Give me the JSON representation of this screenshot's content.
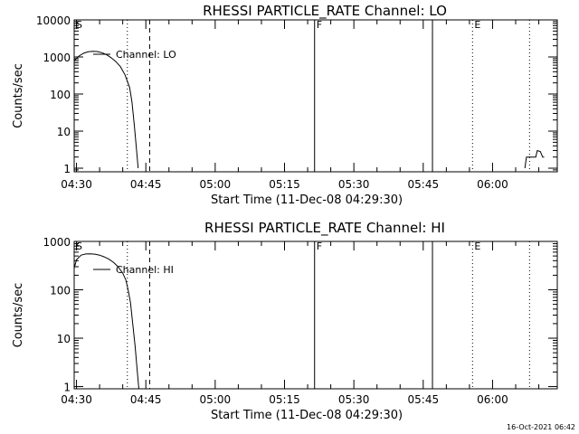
{
  "timestamp": "16-Oct-2021 06:42",
  "chart_data": [
    {
      "type": "line",
      "title": "RHESSI PARTICLE_RATE Channel: LO",
      "xlabel": "Start Time (11-Dec-08 04:29:30)",
      "ylabel": "Counts/sec",
      "yscale": "log",
      "xlim": [
        "04:29:30",
        "06:14:00"
      ],
      "ylim": [
        0.8,
        10000
      ],
      "x_ticks": [
        "04:30",
        "04:45",
        "05:00",
        "05:15",
        "05:30",
        "05:45",
        "06:00"
      ],
      "y_ticks": [
        "1",
        "10",
        "100",
        "1000",
        "10000"
      ],
      "series": [
        {
          "name": "Channel: LO",
          "points": [
            [
              "04:29:30",
              800
            ],
            [
              "04:30:30",
              1050
            ],
            [
              "04:31:30",
              1250
            ],
            [
              "04:32:30",
              1380
            ],
            [
              "04:33:30",
              1420
            ],
            [
              "04:34:30",
              1400
            ],
            [
              "04:35:30",
              1300
            ],
            [
              "04:36:30",
              1150
            ],
            [
              "04:37:30",
              950
            ],
            [
              "04:38:30",
              750
            ],
            [
              "04:39:30",
              550
            ],
            [
              "04:40:30",
              330
            ],
            [
              "04:41:30",
              150
            ],
            [
              "04:42:00",
              60
            ],
            [
              "04:42:30",
              15
            ],
            [
              "04:43:00",
              3
            ],
            [
              "04:43:20",
              1
            ]
          ]
        },
        {
          "name": "",
          "points": [
            [
              "06:07:00",
              1
            ],
            [
              "06:07:20",
              2
            ],
            [
              "06:09:20",
              2
            ],
            [
              "06:09:40",
              3
            ],
            [
              "06:10:20",
              2.8
            ],
            [
              "06:10:50",
              2
            ],
            [
              "06:11:10",
              2
            ]
          ]
        }
      ],
      "markers": [
        {
          "label": "S",
          "time": "04:29:30",
          "style": "none"
        },
        {
          "label": "",
          "time": "04:41:00",
          "style": "dotted"
        },
        {
          "label": "",
          "time": "04:45:50",
          "style": "dashed"
        },
        {
          "label": "F",
          "time": "05:21:30",
          "style": "solid"
        },
        {
          "label": "",
          "time": "05:47:00",
          "style": "solid"
        },
        {
          "label": "E",
          "time": "05:55:40",
          "style": "dotted"
        },
        {
          "label": "",
          "time": "06:08:00",
          "style": "dotted"
        }
      ]
    },
    {
      "type": "line",
      "title": "RHESSI PARTICLE_RATE Channel: HI",
      "xlabel": "Start Time (11-Dec-08 04:29:30)",
      "ylabel": "Counts/sec",
      "yscale": "log",
      "xlim": [
        "04:29:30",
        "06:14:00"
      ],
      "ylim": [
        0.9,
        1000
      ],
      "x_ticks": [
        "04:30",
        "04:45",
        "05:00",
        "05:15",
        "05:30",
        "05:45",
        "06:00"
      ],
      "y_ticks": [
        "1",
        "10",
        "100",
        "1000"
      ],
      "series": [
        {
          "name": "Channel: HI",
          "points": [
            [
              "04:29:30",
              280
            ],
            [
              "04:30:00",
              420
            ],
            [
              "04:31:00",
              520
            ],
            [
              "04:32:00",
              550
            ],
            [
              "04:33:00",
              555
            ],
            [
              "04:34:00",
              545
            ],
            [
              "04:35:00",
              520
            ],
            [
              "04:36:00",
              480
            ],
            [
              "04:37:00",
              430
            ],
            [
              "04:38:00",
              370
            ],
            [
              "04:39:00",
              300
            ],
            [
              "04:40:00",
              220
            ],
            [
              "04:40:40",
              160
            ],
            [
              "04:41:10",
              100
            ],
            [
              "04:41:40",
              55
            ],
            [
              "04:42:10",
              20
            ],
            [
              "04:42:40",
              7
            ],
            [
              "04:43:00",
              3
            ],
            [
              "04:43:20",
              1.3
            ],
            [
              "04:43:30",
              0.9
            ]
          ]
        }
      ],
      "markers": [
        {
          "label": "S",
          "time": "04:29:30",
          "style": "none"
        },
        {
          "label": "",
          "time": "04:41:00",
          "style": "dotted"
        },
        {
          "label": "",
          "time": "04:45:50",
          "style": "dashed"
        },
        {
          "label": "F",
          "time": "05:21:30",
          "style": "solid"
        },
        {
          "label": "",
          "time": "05:47:00",
          "style": "solid"
        },
        {
          "label": "E",
          "time": "05:55:40",
          "style": "dotted"
        },
        {
          "label": "",
          "time": "06:08:00",
          "style": "dotted"
        }
      ]
    }
  ]
}
